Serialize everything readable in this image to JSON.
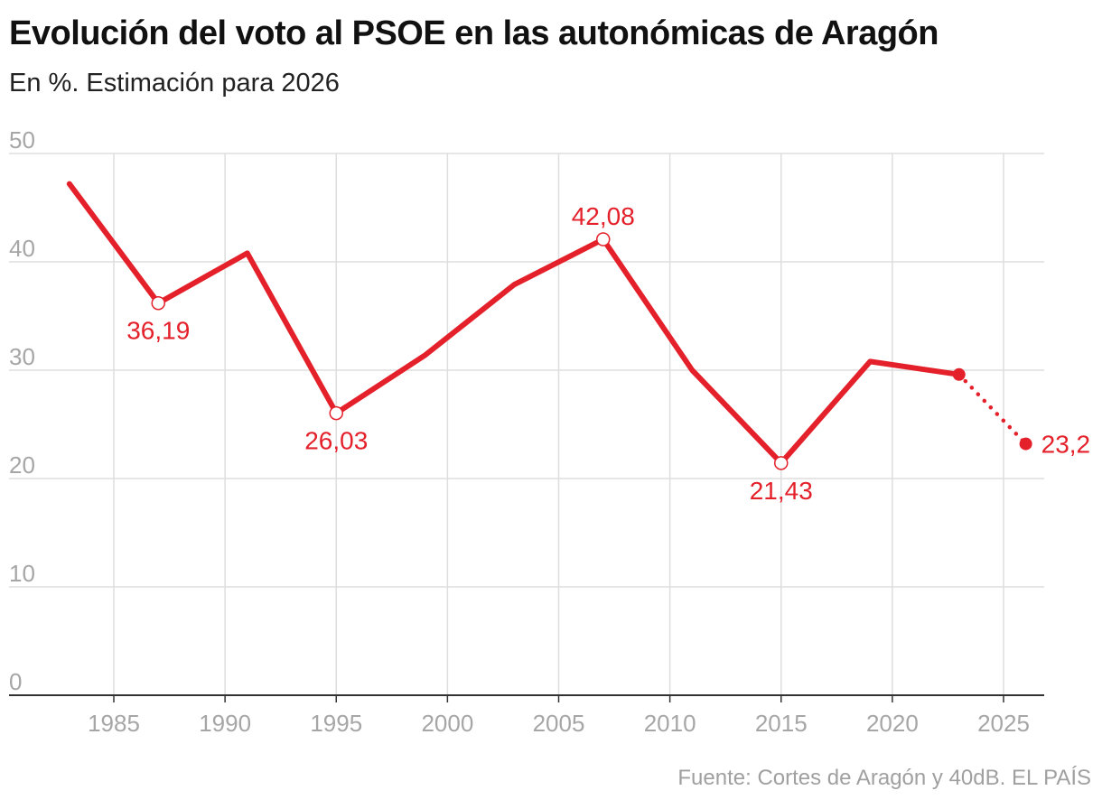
{
  "header": {
    "title": "Evolución del voto al PSOE en las autonómicas de Aragón",
    "subtitle": "En %. Estimación para 2026"
  },
  "footer": {
    "source": "Fuente: Cortes de Aragón y 40dB. EL PAÍS"
  },
  "colors": {
    "series": "#e4212b",
    "grid": "#dedede",
    "axis": "#333333",
    "tick_label": "#a6a6a6"
  },
  "chart_data": {
    "type": "line",
    "title": "Evolución del voto al PSOE en las autonómicas de Aragón",
    "subtitle": "En %. Estimación para 2026",
    "xlabel": "",
    "ylabel": "",
    "xlim": [
      1980,
      2027
    ],
    "ylim": [
      0,
      50
    ],
    "x_ticks": [
      1985,
      1990,
      1995,
      2000,
      2005,
      2010,
      2015,
      2020,
      2025
    ],
    "y_ticks": [
      0,
      10,
      20,
      30,
      40,
      50
    ],
    "grid": "both",
    "legend": "none",
    "series": [
      {
        "x": [
          1983,
          1987,
          1991,
          1995,
          1999,
          2003,
          2007,
          2011,
          2015,
          2019,
          2023
        ],
        "values": [
          47.2,
          36.19,
          40.8,
          26.03,
          31.4,
          37.9,
          42.08,
          30.0,
          21.43,
          30.8,
          29.6
        ],
        "style": "solid"
      },
      {
        "x": [
          2023,
          2026
        ],
        "values": [
          29.6,
          23.2
        ],
        "style": "dotted"
      }
    ],
    "annotations": [
      {
        "x": 1987,
        "y": 36.19,
        "text": "36,19",
        "placement": "below",
        "marker": "open-circle"
      },
      {
        "x": 1995,
        "y": 26.03,
        "text": "26,03",
        "placement": "below",
        "marker": "open-circle"
      },
      {
        "x": 2007,
        "y": 42.08,
        "text": "42,08",
        "placement": "above",
        "marker": "open-circle"
      },
      {
        "x": 2015,
        "y": 21.43,
        "text": "21,43",
        "placement": "below",
        "marker": "open-circle"
      },
      {
        "x": 2026,
        "y": 23.2,
        "text": "23,2",
        "placement": "right",
        "marker": "filled-dot"
      }
    ],
    "markers": [
      {
        "x": 2023,
        "y": 29.6,
        "marker": "filled-dot"
      }
    ]
  }
}
